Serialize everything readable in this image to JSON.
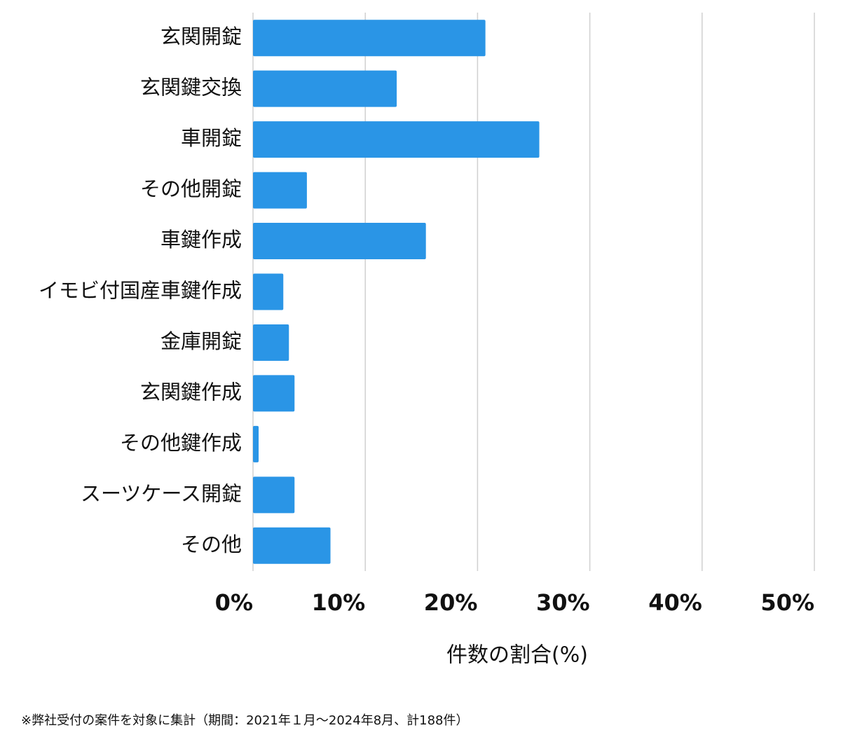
{
  "chart_data": {
    "type": "bar",
    "orientation": "horizontal",
    "categories": [
      "玄関開錠",
      "玄関鍵交換",
      "車開錠",
      "その他開錠",
      "車鍵作成",
      "イモビ付国産車鍵作成",
      "金庫開錠",
      "玄関鍵作成",
      "その他鍵作成",
      "スーツケース開錠",
      "その他"
    ],
    "values": [
      20.7,
      12.8,
      25.5,
      4.8,
      15.4,
      2.7,
      3.2,
      3.7,
      0.5,
      3.7,
      6.9
    ],
    "color": "#2a95e6",
    "xlim": [
      0,
      50
    ],
    "xticks": [
      {
        "value": 0,
        "label": "0%"
      },
      {
        "value": 10,
        "label": "10%"
      },
      {
        "value": 20,
        "label": "20%"
      },
      {
        "value": 30,
        "label": "30%"
      },
      {
        "value": 40,
        "label": "40%"
      },
      {
        "value": 50,
        "label": "50%"
      }
    ],
    "grid": true,
    "xlabel": "件数の割合(%)",
    "footnote": "※弊社受付の案件を対象に集計（期間：2021年１月～2024年8月、計188件）"
  }
}
